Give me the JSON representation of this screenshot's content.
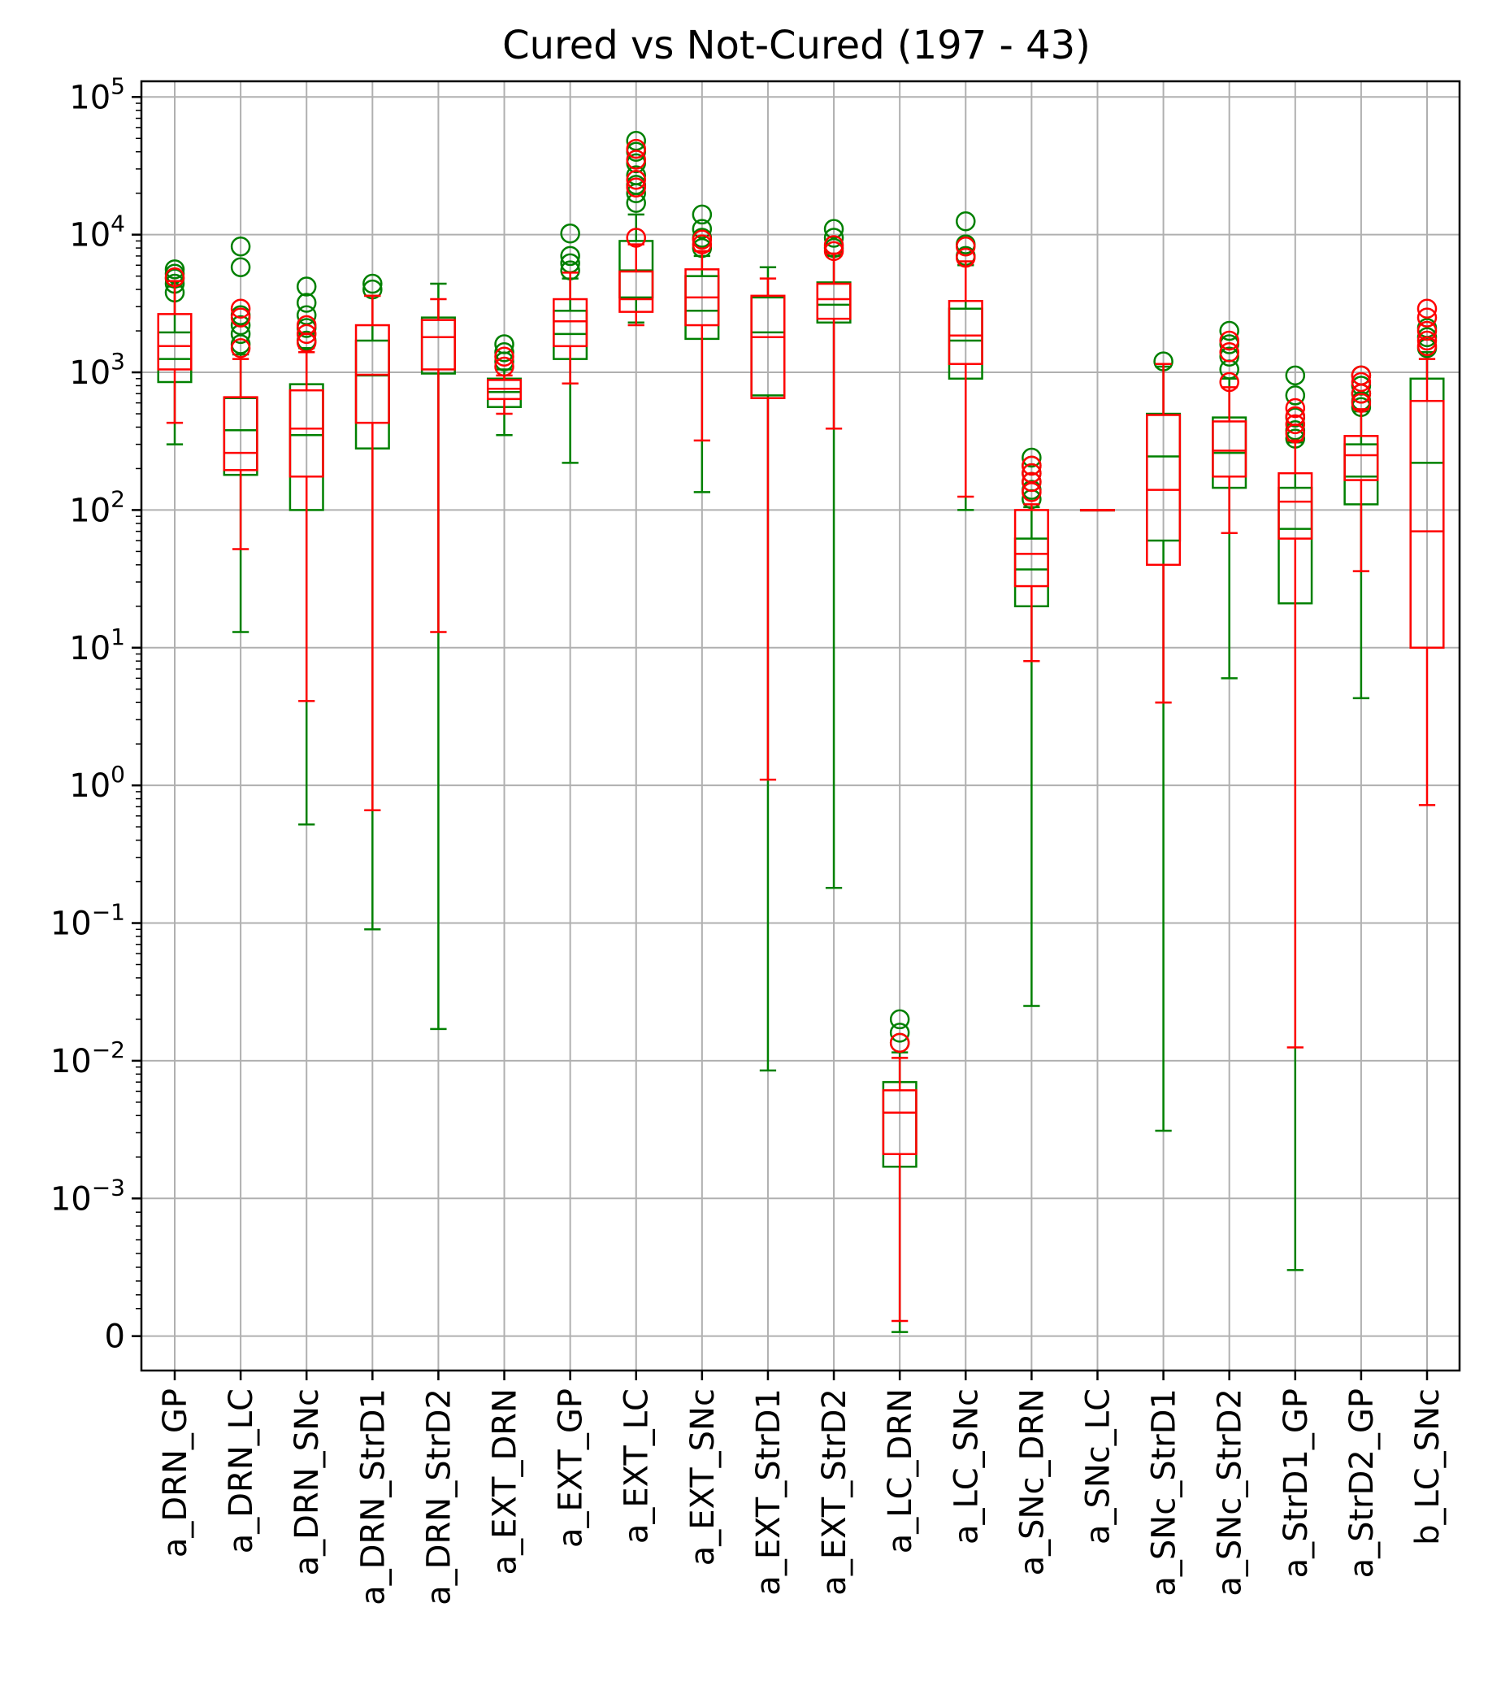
{
  "chart_data": {
    "type": "boxplot",
    "title": "Cured vs Not-Cured (197 - 43)",
    "yscale": "symlog",
    "ylim": [
      -0.00025,
      130000
    ],
    "grid": true,
    "y_ticks": [
      {
        "value": 100000,
        "base": "10",
        "exp": "5"
      },
      {
        "value": 10000,
        "base": "10",
        "exp": "4"
      },
      {
        "value": 1000,
        "base": "10",
        "exp": "3"
      },
      {
        "value": 100,
        "base": "10",
        "exp": "2"
      },
      {
        "value": 10,
        "base": "10",
        "exp": "1"
      },
      {
        "value": 1,
        "base": "10",
        "exp": "0"
      },
      {
        "value": 0.1,
        "base": "10",
        "exp": "−1"
      },
      {
        "value": 0.01,
        "base": "10",
        "exp": "−2"
      },
      {
        "value": 0.001,
        "base": "10",
        "exp": "−3"
      },
      {
        "value": 0,
        "base": "0",
        "exp": ""
      }
    ],
    "categories": [
      "a_DRN_GP",
      "a_DRN_LC",
      "a_DRN_SNc",
      "a_DRN_StrD1",
      "a_DRN_StrD2",
      "a_EXT_DRN",
      "a_EXT_GP",
      "a_EXT_LC",
      "a_EXT_SNc",
      "a_EXT_StrD1",
      "a_EXT_StrD2",
      "a_LC_DRN",
      "a_LC_SNc",
      "a_SNc_DRN",
      "a_SNc_LC",
      "a_SNc_StrD1",
      "a_SNc_StrD2",
      "a_StrD1_GP",
      "a_StrD2_GP",
      "b_LC_SNc"
    ],
    "series": [
      {
        "color": "#008000",
        "boxes": [
          {
            "whislo": 300,
            "q1": 850,
            "med": 1250,
            "q3": 1950,
            "whishi": 4200,
            "fliers": [
              3800,
              4400,
              4800,
              5200,
              5600
            ]
          },
          {
            "whislo": 13,
            "q1": 180,
            "med": 380,
            "q3": 650,
            "whishi": 1350,
            "fliers": [
              1600,
              1900,
              2200,
              2600,
              5800,
              8200
            ]
          },
          {
            "whislo": 0.52,
            "q1": 100,
            "med": 350,
            "q3": 820,
            "whishi": 1500,
            "fliers": [
              1700,
              2100,
              2600,
              3200,
              4200
            ]
          },
          {
            "whislo": 0.09,
            "q1": 280,
            "med": 950,
            "q3": 1700,
            "whishi": 3600,
            "fliers": [
              4000,
              4400
            ]
          },
          {
            "whislo": 0.017,
            "q1": 980,
            "med": 1800,
            "q3": 2500,
            "whishi": 4400,
            "fliers": []
          },
          {
            "whislo": 350,
            "q1": 560,
            "med": 720,
            "q3": 900,
            "whishi": 1050,
            "fliers": [
              1200,
              1400,
              1600
            ]
          },
          {
            "whislo": 220,
            "q1": 1250,
            "med": 1900,
            "q3": 2800,
            "whishi": 4800,
            "fliers": [
              5500,
              6200,
              7000,
              10200
            ]
          },
          {
            "whislo": 2300,
            "q1": 3500,
            "med": 5500,
            "q3": 9000,
            "whishi": 14000,
            "fliers": [
              17000,
              20000,
              23000,
              27000,
              33000,
              40000,
              48000
            ]
          },
          {
            "whislo": 135,
            "q1": 1750,
            "med": 2800,
            "q3": 5000,
            "whishi": 7000,
            "fliers": [
              8000,
              9500,
              11000,
              14000
            ]
          },
          {
            "whislo": 0.0085,
            "q1": 680,
            "med": 1950,
            "q3": 3500,
            "whishi": 5800,
            "fliers": []
          },
          {
            "whislo": 0.18,
            "q1": 2300,
            "med": 3100,
            "q3": 4500,
            "whishi": 7000,
            "fliers": [
              8000,
              9500,
              11000
            ]
          },
          {
            "whislo": 3e-05,
            "q1": 0.0017,
            "med": 0.0042,
            "q3": 0.007,
            "whishi": 0.0115,
            "fliers": [
              0.0135,
              0.016,
              0.02
            ]
          },
          {
            "whislo": 100,
            "q1": 900,
            "med": 1700,
            "q3": 2900,
            "whishi": 6000,
            "fliers": [
              7000,
              8500,
              12500
            ]
          },
          {
            "whislo": 0.025,
            "q1": 20,
            "med": 37,
            "q3": 62,
            "whishi": 105,
            "fliers": [
              120,
              140,
              160,
              185,
              210,
              240
            ]
          },
          {
            "whislo": 100,
            "q1": 100,
            "med": 100,
            "q3": 100,
            "whishi": 100,
            "fliers": []
          },
          {
            "whislo": 0.0031,
            "q1": 60,
            "med": 245,
            "q3": 500,
            "whishi": 1100,
            "fliers": [
              1200
            ]
          },
          {
            "whislo": 6,
            "q1": 145,
            "med": 260,
            "q3": 470,
            "whishi": 900,
            "fliers": [
              1050,
              1300,
              1600,
              2000
            ]
          },
          {
            "whislo": 0.00048,
            "q1": 21,
            "med": 73,
            "q3": 145,
            "whishi": 310,
            "fliers": [
              330,
              380,
              470,
              680,
              950
            ]
          },
          {
            "whislo": 4.3,
            "q1": 110,
            "med": 175,
            "q3": 300,
            "whishi": 520,
            "fliers": [
              560,
              620,
              700,
              800,
              950
            ]
          },
          {
            "whislo": 10,
            "q1": 10,
            "med": 220,
            "q3": 900,
            "whishi": 1400,
            "fliers": [
              1500,
              1800,
              2100
            ]
          }
        ]
      },
      {
        "color": "#ff0000",
        "boxes": [
          {
            "whislo": 430,
            "q1": 1050,
            "med": 1550,
            "q3": 2650,
            "whishi": 4600,
            "fliers": [
              4900
            ]
          },
          {
            "whislo": 52,
            "q1": 195,
            "med": 260,
            "q3": 660,
            "whishi": 1250,
            "fliers": [
              1500,
              2500,
              2900
            ]
          },
          {
            "whislo": 4.1,
            "q1": 175,
            "med": 390,
            "q3": 740,
            "whishi": 1400,
            "fliers": [
              1650,
              1900,
              2200
            ]
          },
          {
            "whislo": 0.66,
            "q1": 430,
            "med": 960,
            "q3": 2200,
            "whishi": 3600,
            "fliers": []
          },
          {
            "whislo": 13,
            "q1": 1050,
            "med": 1800,
            "q3": 2400,
            "whishi": 3400,
            "fliers": []
          },
          {
            "whislo": 500,
            "q1": 640,
            "med": 760,
            "q3": 880,
            "whishi": 950,
            "fliers": [
              1100,
              1300
            ]
          },
          {
            "whislo": 830,
            "q1": 1550,
            "med": 2350,
            "q3": 3400,
            "whishi": 5300,
            "fliers": []
          },
          {
            "whislo": 2200,
            "q1": 2750,
            "med": 3400,
            "q3": 5400,
            "whishi": 8500,
            "fliers": [
              9500,
              22000,
              25000,
              35000,
              42000
            ]
          },
          {
            "whislo": 320,
            "q1": 2200,
            "med": 3500,
            "q3": 5600,
            "whishi": 7600,
            "fliers": [
              8500,
              9200
            ]
          },
          {
            "whislo": 1.1,
            "q1": 650,
            "med": 1800,
            "q3": 3600,
            "whishi": 4800,
            "fliers": []
          },
          {
            "whislo": 390,
            "q1": 2450,
            "med": 3400,
            "q3": 4400,
            "whishi": 7300,
            "fliers": [
              7600,
              8400
            ]
          },
          {
            "whislo": 0.00011,
            "q1": 0.0021,
            "med": 0.0042,
            "q3": 0.0061,
            "whishi": 0.0105,
            "fliers": [
              0.0135
            ]
          },
          {
            "whislo": 125,
            "q1": 1150,
            "med": 1850,
            "q3": 3300,
            "whishi": 6400,
            "fliers": [
              6800,
              8200
            ]
          },
          {
            "whislo": 8,
            "q1": 28,
            "med": 48,
            "q3": 100,
            "whishi": 110,
            "fliers": [
              135,
              160,
              185,
              210
            ]
          },
          {
            "whislo": 100,
            "q1": 100,
            "med": 100,
            "q3": 100,
            "whishi": 100,
            "fliers": []
          },
          {
            "whislo": 4,
            "q1": 40,
            "med": 140,
            "q3": 490,
            "whishi": 1150,
            "fliers": []
          },
          {
            "whislo": 68,
            "q1": 175,
            "med": 270,
            "q3": 440,
            "whishi": 780,
            "fliers": [
              850,
              1400,
              1700
            ]
          },
          {
            "whislo": 0.0125,
            "q1": 62,
            "med": 115,
            "q3": 185,
            "whishi": 320,
            "fliers": [
              360,
              420,
              480,
              550
            ]
          },
          {
            "whislo": 36,
            "q1": 165,
            "med": 250,
            "q3": 345,
            "whishi": 540,
            "fliers": [
              600,
              700,
              850,
              950
            ]
          },
          {
            "whislo": 0.72,
            "q1": 10,
            "med": 70,
            "q3": 620,
            "whishi": 1250,
            "fliers": [
              1550,
              1700,
              2000,
              2500,
              2900
            ]
          }
        ]
      }
    ]
  }
}
